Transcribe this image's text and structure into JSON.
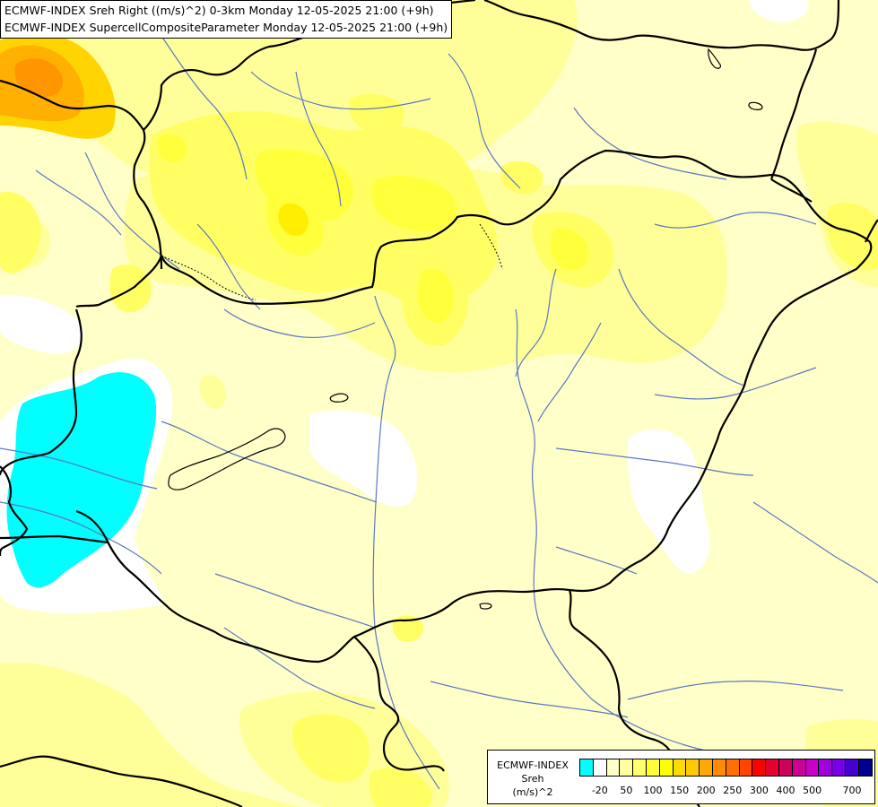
{
  "header": {
    "line1": "ECMWF-INDEX Sreh Right ((m/s)^2) 0-3km Monday 12-05-2025 21:00 (+9h)",
    "line2": "ECMWF-INDEX SupercellCompositeParameter Monday 12-05-2025 21:00 (+9h)"
  },
  "legend": {
    "title_line1": "ECMWF-INDEX",
    "title_line2": "Sreh",
    "unit": "(m/s)^2",
    "colors": [
      "#00ffff",
      "#ffffff",
      "#ffffc8",
      "#ffffa0",
      "#ffff70",
      "#ffff38",
      "#ffff00",
      "#ffdc00",
      "#ffc800",
      "#ffaa00",
      "#ff8c00",
      "#ff6e00",
      "#ff4600",
      "#ff0000",
      "#e6002d",
      "#cd005a",
      "#cd0096",
      "#c800c8",
      "#a000dc",
      "#7800e6",
      "#4600d2",
      "#00008c"
    ],
    "ticks": [
      "-20",
      "50",
      "100",
      "150",
      "200",
      "250",
      "300",
      "400",
      "500",
      "700"
    ]
  },
  "map": {
    "colors": {
      "background": "#ffffc8",
      "white": "#ffffff",
      "cyan": "#00ffff",
      "light_yellow": "#ffff9a",
      "yellow": "#ffff64",
      "yellow_strong": "#ffff3c",
      "yellow_deep": "#ffee00",
      "gold": "#ffd400",
      "orange": "#ffb000",
      "orange_dark": "#ff9600",
      "border": "#000000",
      "river": "#5b78c0"
    }
  }
}
